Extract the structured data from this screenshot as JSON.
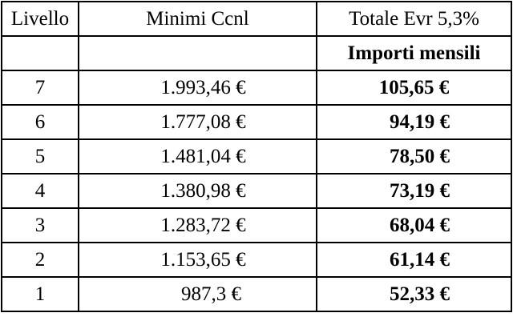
{
  "table": {
    "headers": {
      "livello": "Livello",
      "minimi": "Minimi Ccnl",
      "totale": "Totale Evr 5,3%",
      "importi": "Importi mensili"
    },
    "rows": [
      {
        "livello": "7",
        "minimi": "1.993,46 €",
        "importo": "105,65 €"
      },
      {
        "livello": "6",
        "minimi": "1.777,08 €",
        "importo": "94,19 €"
      },
      {
        "livello": "5",
        "minimi": "1.481,04 €",
        "importo": "78,50 €"
      },
      {
        "livello": "4",
        "minimi": "1.380,98 €",
        "importo": "73,19 €"
      },
      {
        "livello": "3",
        "minimi": "1.283,72 €",
        "importo": "68,04 €"
      },
      {
        "livello": "2",
        "minimi": "1.153,65 €",
        "importo": "61,14 €"
      },
      {
        "livello": "1",
        "minimi": "987,3 €",
        "importo": "52,33 €"
      }
    ]
  }
}
